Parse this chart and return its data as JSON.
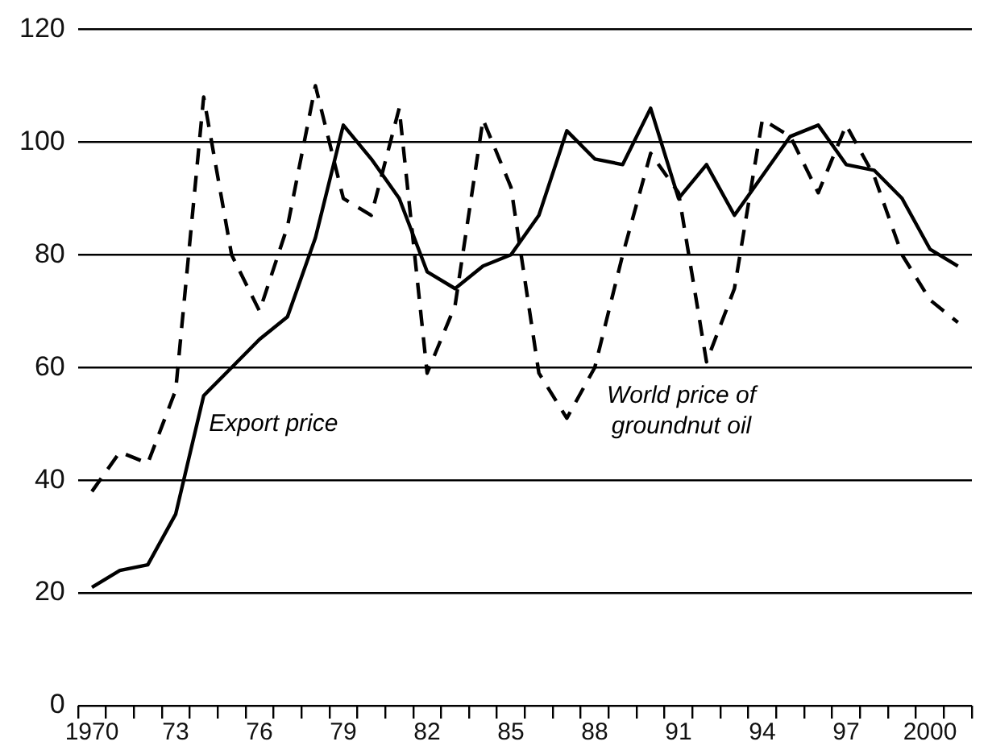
{
  "chart_data": {
    "type": "line",
    "categories": [
      "1970",
      null,
      null,
      "73",
      null,
      null,
      "76",
      null,
      null,
      "79",
      null,
      null,
      "82",
      null,
      null,
      "85",
      null,
      null,
      "88",
      null,
      null,
      "91",
      null,
      null,
      "94",
      null,
      null,
      "97",
      null,
      null,
      "2000",
      null
    ],
    "series": [
      {
        "name": "Export price",
        "color": "#000000",
        "line_style": "solid",
        "values": [
          21,
          24,
          25,
          34,
          55,
          60,
          65,
          69,
          83,
          103,
          97,
          90,
          77,
          74,
          78,
          80,
          87,
          102,
          97,
          96,
          106,
          90,
          96,
          87,
          94,
          101,
          103,
          96,
          95,
          90,
          81,
          78
        ]
      },
      {
        "name": "World price of groundnut oil",
        "color": "#000000",
        "line_style": "dashed",
        "values": [
          38,
          45,
          43,
          56,
          108,
          80,
          70,
          85,
          110,
          90,
          87,
          106,
          59,
          71,
          104,
          92,
          59,
          51,
          60,
          80,
          98,
          91,
          61,
          74,
          104,
          101,
          91,
          103,
          94,
          80,
          72,
          68
        ]
      }
    ],
    "ylim": [
      0,
      120
    ],
    "yticks": [
      0,
      20,
      40,
      60,
      80,
      100,
      120
    ],
    "grid": "y",
    "legend": false,
    "marker": "none"
  }
}
